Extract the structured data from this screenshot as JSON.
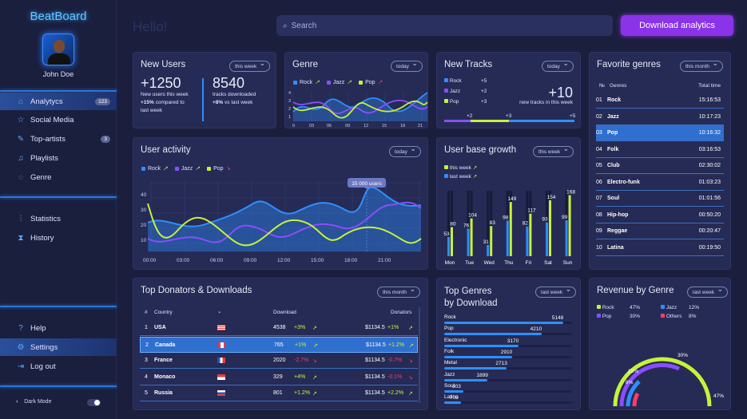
{
  "brand": "BeatBoard",
  "user": {
    "name": "John Doe"
  },
  "nav": {
    "analytycs": "Analytycs",
    "analytycs_badge": "123",
    "social": "Social Media",
    "artists": "Top-artists",
    "artists_badge": "3",
    "playlists": "Playlists",
    "genre": "Genre",
    "statistics": "Statistics",
    "history": "History",
    "help": "Help",
    "settings": "Settings",
    "logout": "Log out",
    "dark_mode": "Dark Mode"
  },
  "header": {
    "hello": "Hello!",
    "search_placeholder": "Search",
    "download_label": "Download analytics"
  },
  "new_users": {
    "title": "New Users",
    "period": "this week",
    "count": "+1250",
    "desc1": "New users this week",
    "pct": "+15%",
    "desc2": "compared to",
    "desc3": "last week",
    "downloads": "8540",
    "dl_desc": "tracks downloaded",
    "dl_pct": "+8%",
    "dl_desc2": "vs last week"
  },
  "genre_card": {
    "title": "Genre",
    "period": "today",
    "legend": [
      "Rock",
      "Jazz",
      "Pop"
    ],
    "yticks": [
      "1",
      "2",
      "3",
      "4"
    ],
    "xticks": [
      "0",
      "03",
      "06",
      "09",
      "12",
      "15",
      "18",
      "21"
    ]
  },
  "new_tracks": {
    "title": "New Tracks",
    "period": "today",
    "rows": [
      {
        "name": "Rock",
        "val": "+5"
      },
      {
        "name": "Jazz",
        "val": "+2"
      },
      {
        "name": "Pop",
        "val": "+3"
      }
    ],
    "big": "+10",
    "big_desc": "new tracks in this week",
    "bar_labels": [
      "+2",
      "+3",
      "+5"
    ]
  },
  "fav_genres": {
    "title": "Favorite genres",
    "period": "this month",
    "h_no": "№",
    "h_genres": "Genres",
    "h_time": "Total time",
    "rows": [
      {
        "n": "01",
        "g": "Rock",
        "t": "15:16:53"
      },
      {
        "n": "02",
        "g": "Jazz",
        "t": "10:17:23"
      },
      {
        "n": "03",
        "g": "Pop",
        "t": "10:16:32"
      },
      {
        "n": "04",
        "g": "Folk",
        "t": "03:16:53"
      },
      {
        "n": "05",
        "g": "Club",
        "t": "02:30:02"
      },
      {
        "n": "06",
        "g": "Electro-funk",
        "t": "01:03:23"
      },
      {
        "n": "07",
        "g": "Soul",
        "t": "01:01:56"
      },
      {
        "n": "08",
        "g": "Hip-hop",
        "t": "00:50:20"
      },
      {
        "n": "09",
        "g": "Reggae",
        "t": "00:20:47"
      },
      {
        "n": "10",
        "g": "Latina",
        "t": "00:19:50"
      }
    ]
  },
  "user_activity": {
    "title": "User activity",
    "period": "today",
    "legend": [
      "Rock",
      "Jazz",
      "Pop"
    ],
    "tooltip": "15 000 users",
    "yticks": [
      "40",
      "30",
      "20",
      "10"
    ],
    "xticks": [
      "00:00",
      "03:00",
      "06:00",
      "09:00",
      "12:00",
      "15:00",
      "18:00",
      "21:00"
    ]
  },
  "growth": {
    "title": "User base growth",
    "period": "this week",
    "legend": [
      "this week",
      "last week"
    ],
    "days": [
      "Mon",
      "Tue",
      "Wed",
      "Thu",
      "Fri",
      "Sat",
      "Sun"
    ],
    "this_week": [
      80,
      104,
      83,
      149,
      117,
      154,
      168
    ],
    "last_week": [
      53,
      76,
      31,
      98,
      82,
      93,
      99
    ]
  },
  "donators": {
    "title": "Top Donators & Downloads",
    "period": "this month",
    "h_no": "#",
    "h_country": "Country",
    "h_download": "Download",
    "h_donators": "Donators",
    "rows": [
      {
        "n": "1",
        "c": "USA",
        "d": "4538",
        "dp": "+3%",
        "m": "$1134.5",
        "mp": "+1%"
      },
      {
        "n": "2",
        "c": "Canada",
        "d": "765",
        "dp": "+1%",
        "m": "$1134.5",
        "mp": "+1.2%"
      },
      {
        "n": "3",
        "c": "France",
        "d": "2020",
        "dp": "-2.7%",
        "m": "$1134.5",
        "mp": "-0.7%"
      },
      {
        "n": "4",
        "c": "Monaco",
        "d": "329",
        "dp": "+4%",
        "m": "$1134.5",
        "mp": "-0.1%"
      },
      {
        "n": "5",
        "c": "Russia",
        "d": "801",
        "dp": "+1.2%",
        "m": "$1134.5",
        "mp": "+2.2%"
      }
    ]
  },
  "top_genres": {
    "title1": "Top Genres",
    "title2": "by Download",
    "period": "last week",
    "rows": [
      {
        "g": "Rock",
        "v": "5148",
        "f": 0.93
      },
      {
        "g": "Pop",
        "v": "4210",
        "f": 0.76
      },
      {
        "g": "Electronic",
        "v": "3170",
        "f": 0.58
      },
      {
        "g": "Folk",
        "v": "2910",
        "f": 0.53
      },
      {
        "g": "Metal",
        "v": "2713",
        "f": 0.49
      },
      {
        "g": "Jazz",
        "v": "1899",
        "f": 0.34
      },
      {
        "g": "Soul",
        "v": "803",
        "f": 0.15
      },
      {
        "g": "Latina",
        "v": "705",
        "f": 0.13
      }
    ]
  },
  "revenue": {
    "title": "Revenue by Genre",
    "period": "last week",
    "legend": [
      {
        "g": "Rock",
        "p": "47%"
      },
      {
        "g": "Jazz",
        "p": "12%"
      },
      {
        "g": "Pop",
        "p": "30%"
      },
      {
        "g": "Others",
        "p": "8%"
      }
    ],
    "arc_labels": [
      "30%",
      "12%",
      "8%",
      "47%"
    ]
  },
  "colors": {
    "rock": "#2e8fff",
    "jazz": "#8b4dff",
    "pop": "#c6f23a",
    "others": "#ff3b6b"
  }
}
